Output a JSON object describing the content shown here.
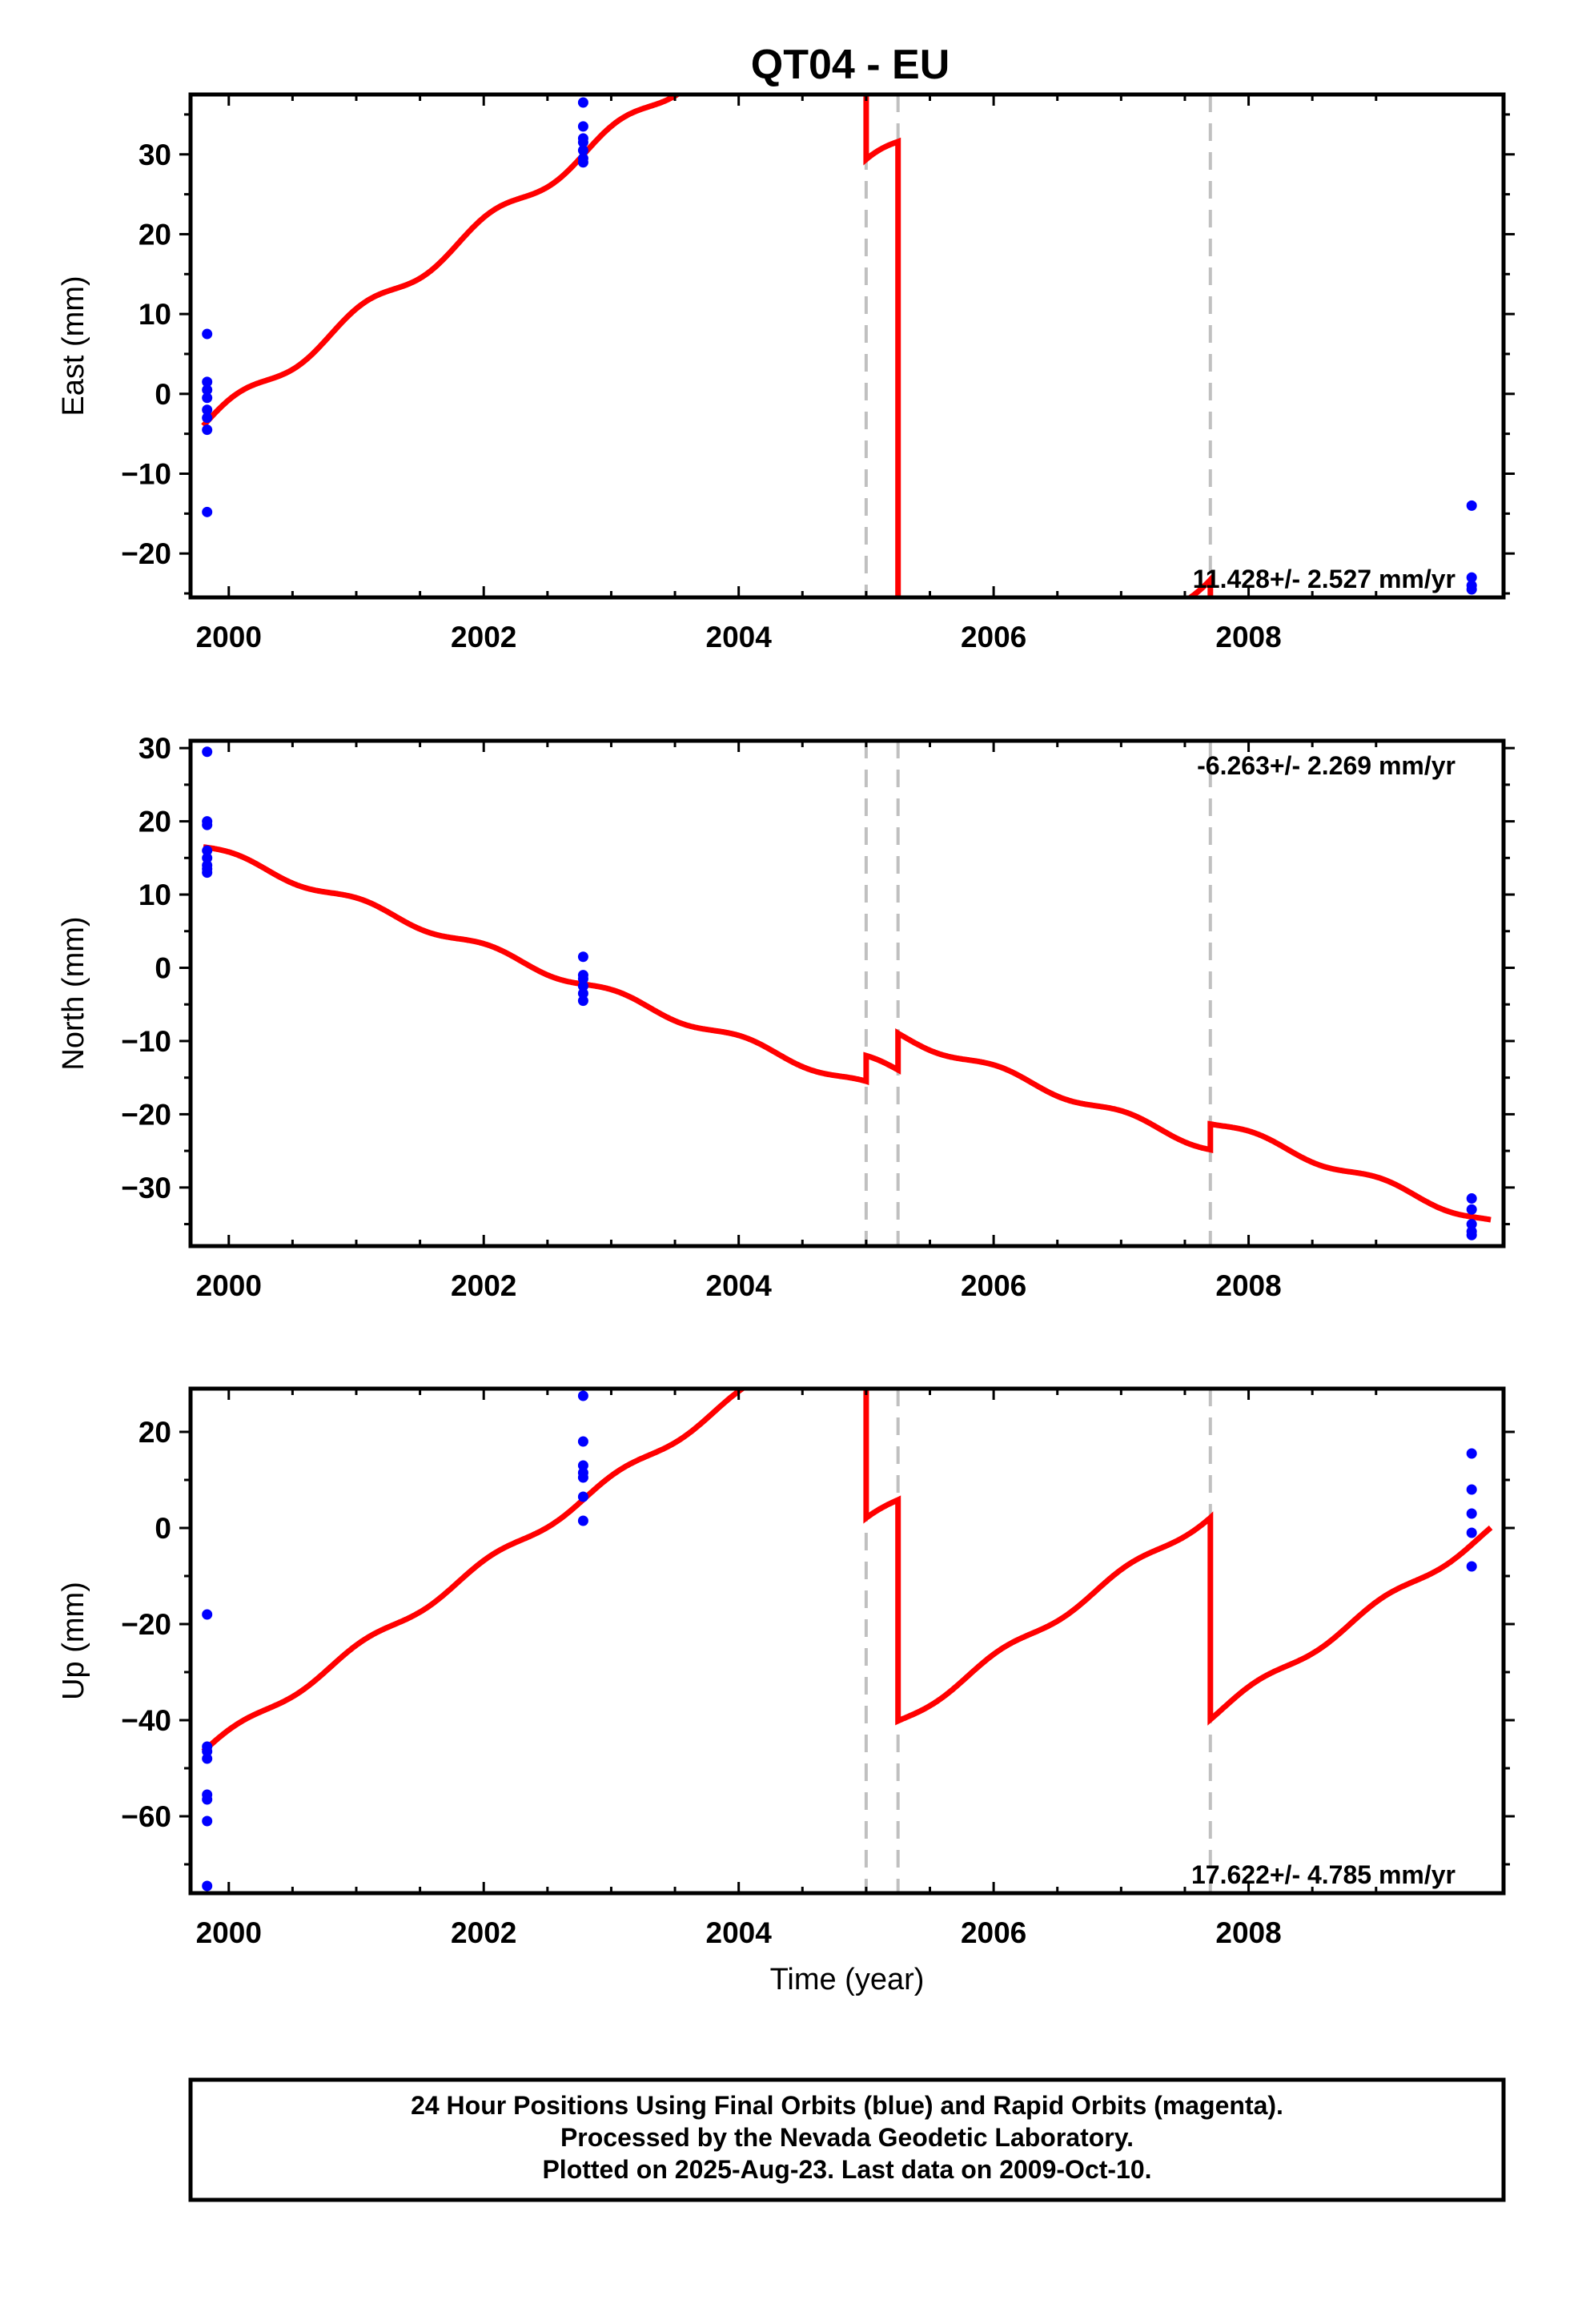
{
  "chart_data": {
    "title": "QT04 - EU",
    "type": "scatter",
    "x_label": "Time (year)",
    "x_range": [
      1999.7,
      2010.0
    ],
    "x_ticks": [
      2000,
      2002,
      2004,
      2006,
      2008
    ],
    "x_tick_labels": [
      "2000",
      "2002",
      "2004",
      "2006",
      "2008"
    ],
    "breaks": [
      2005.0,
      2005.25,
      2007.7
    ],
    "marker_color": "#0000ff",
    "model_color": "#ff0000",
    "break_color": "#c0c0c0",
    "panels": [
      {
        "id": "east",
        "ylabel": "East (mm)",
        "ylim": [
          -25.5,
          37.5
        ],
        "yticks": [
          -20,
          -10,
          0,
          10,
          20,
          30
        ],
        "ytick_labels": [
          "−20",
          "−10",
          "0",
          "10",
          "20",
          "30"
        ],
        "rate": "11.428+/- 2.527 mm/yr",
        "rate_position": "bottom-right",
        "model": {
          "slope": 11.428,
          "t0": 1999.8,
          "start": -4.0,
          "amp": 1.0,
          "segments": [
            [
              1999.8,
              2005.0
            ],
            [
              2005.0,
              2005.25
            ],
            [
              2005.25,
              2007.7
            ],
            [
              2007.7,
              2009.9
            ]
          ],
          "jumps": [
            -27.0,
            -82.0,
            -52.0
          ]
        },
        "points": [
          [
            1999.83,
            7.5
          ],
          [
            1999.83,
            1.5
          ],
          [
            1999.83,
            0.5
          ],
          [
            1999.83,
            -0.5
          ],
          [
            1999.83,
            -2.0
          ],
          [
            1999.83,
            -3.0
          ],
          [
            1999.83,
            -4.5
          ],
          [
            1999.83,
            -14.8
          ],
          [
            2002.78,
            36.5
          ],
          [
            2002.78,
            33.5
          ],
          [
            2002.78,
            32.0
          ],
          [
            2002.78,
            31.5
          ],
          [
            2002.78,
            30.5
          ],
          [
            2002.78,
            29.5
          ],
          [
            2002.78,
            29.0
          ],
          [
            2009.75,
            -14.0
          ],
          [
            2009.75,
            -23.0
          ],
          [
            2009.75,
            -24.0
          ],
          [
            2009.75,
            -24.5
          ]
        ]
      },
      {
        "id": "north",
        "ylabel": "North (mm)",
        "ylim": [
          -38,
          31
        ],
        "yticks": [
          -30,
          -20,
          -10,
          0,
          10,
          20,
          30
        ],
        "ytick_labels": [
          "−30",
          "−20",
          "−10",
          "0",
          "10",
          "20",
          "30"
        ],
        "rate": "-6.263+/- 2.269 mm/yr",
        "rate_position": "top-right",
        "model": {
          "slope": -6.263,
          "t0": 1999.8,
          "start": 16.5,
          "amp": 0.6,
          "segments": [
            [
              1999.8,
              2005.0
            ],
            [
              2005.0,
              2005.25
            ],
            [
              2005.25,
              2007.7
            ],
            [
              2007.7,
              2009.9
            ]
          ],
          "jumps": [
            3.5,
            5.0,
            3.5
          ]
        },
        "points": [
          [
            1999.83,
            29.5
          ],
          [
            1999.83,
            20.0
          ],
          [
            1999.83,
            19.5
          ],
          [
            1999.83,
            16.0
          ],
          [
            1999.83,
            15.0
          ],
          [
            1999.83,
            14.0
          ],
          [
            1999.83,
            13.5
          ],
          [
            1999.83,
            13.0
          ],
          [
            2002.78,
            1.5
          ],
          [
            2002.78,
            -1.0
          ],
          [
            2002.78,
            -1.5
          ],
          [
            2002.78,
            -2.5
          ],
          [
            2002.78,
            -3.5
          ],
          [
            2002.78,
            -4.5
          ],
          [
            2009.75,
            -31.5
          ],
          [
            2009.75,
            -33.0
          ],
          [
            2009.75,
            -35.0
          ],
          [
            2009.75,
            -36.0
          ],
          [
            2009.75,
            -36.5
          ]
        ]
      },
      {
        "id": "up",
        "ylabel": "Up (mm)",
        "ylim": [
          -76,
          29
        ],
        "yticks": [
          -60,
          -40,
          -20,
          0,
          20
        ],
        "ytick_labels": [
          "−60",
          "−40",
          "−20",
          "0",
          "20"
        ],
        "rate": "17.622+/- 4.785 mm/yr",
        "rate_position": "bottom-right",
        "model": {
          "slope": 17.622,
          "t0": 1999.8,
          "start": -46.5,
          "amp": 1.0,
          "segments": [
            [
              1999.8,
              2005.0
            ],
            [
              2005.0,
              2005.25
            ],
            [
              2005.25,
              2007.7
            ],
            [
              2007.7,
              2009.9
            ]
          ],
          "jumps": [
            -44.0,
            -46.0,
            -42.0
          ]
        },
        "points": [
          [
            1999.83,
            -18.0
          ],
          [
            1999.83,
            -45.5
          ],
          [
            1999.83,
            -46.5
          ],
          [
            1999.83,
            -48.0
          ],
          [
            1999.83,
            -55.5
          ],
          [
            1999.83,
            -56.5
          ],
          [
            1999.83,
            -61.0
          ],
          [
            1999.83,
            -74.5
          ],
          [
            2002.78,
            27.5
          ],
          [
            2002.78,
            18.0
          ],
          [
            2002.78,
            13.0
          ],
          [
            2002.78,
            11.5
          ],
          [
            2002.78,
            10.5
          ],
          [
            2002.78,
            6.5
          ],
          [
            2002.78,
            1.5
          ],
          [
            2009.75,
            15.5
          ],
          [
            2009.75,
            8.0
          ],
          [
            2009.75,
            3.0
          ],
          [
            2009.75,
            -1.0
          ],
          [
            2009.75,
            -8.0
          ]
        ]
      }
    ],
    "footer": [
      "24 Hour Positions Using Final Orbits (blue) and Rapid Orbits (magenta).",
      "Processed by the Nevada Geodetic Laboratory.",
      "Plotted on 2025-Aug-23. Last data on 2009-Oct-10."
    ]
  }
}
